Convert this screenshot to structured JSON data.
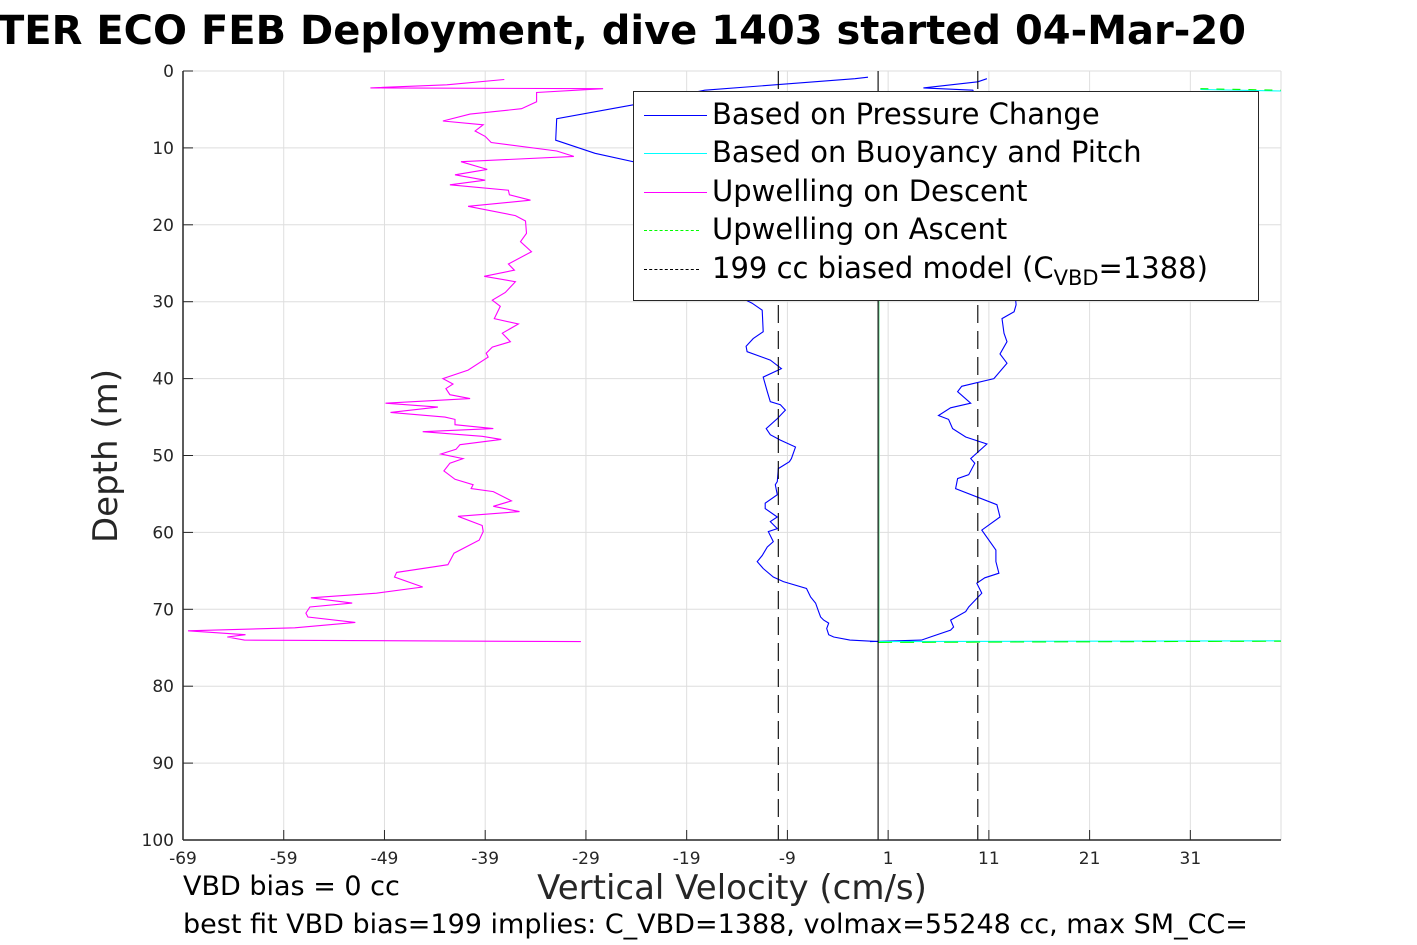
{
  "title": "TER ECO FEB Deployment, dive 1403 started 04-Mar-20",
  "notes": {
    "line1": "VBD bias = 0 cc",
    "line2": "best fit VBD bias=199 implies: C_VBD=1388, volmax=55248 cc, max SM_CC="
  },
  "chart_data": {
    "type": "line",
    "title": "TER ECO FEB Deployment, dive 1403 started 04-Mar-20",
    "xlabel": "Vertical Velocity (cm/s)",
    "ylabel": "Depth (m)",
    "xlim": [
      -69,
      40
    ],
    "ylim": [
      0,
      100
    ],
    "y_reversed": true,
    "grid": true,
    "xticks": [
      -69,
      -59,
      -49,
      -39,
      -29,
      -19,
      -9,
      1,
      11,
      21,
      31
    ],
    "yticks": [
      0,
      10,
      20,
      30,
      40,
      50,
      60,
      70,
      80,
      90,
      100
    ],
    "legend_placement": "top-right",
    "legend": [
      {
        "label": "Based on Pressure Change",
        "color": "#0000ff",
        "style": "solid"
      },
      {
        "label": "Based on Buoyancy and Pitch",
        "color": "#00ffff",
        "style": "solid"
      },
      {
        "label": "Upwelling on Descent",
        "color": "#ff00ff",
        "style": "solid"
      },
      {
        "label": "Upwelling on Ascent",
        "color": "#00ff00",
        "style": "dashed"
      },
      {
        "label_pre": "199 cc biased model (C",
        "label_sub": "VBD",
        "label_post": "=1388)",
        "color": "#000000",
        "style": "dashed"
      }
    ],
    "series": [
      {
        "name": "Based on Pressure Change (descent)",
        "color": "#0000ff",
        "dash": "",
        "points": [
          [
            -1,
            0.8
          ],
          [
            -2.3,
            1.0
          ],
          [
            -17.2,
            2.5
          ],
          [
            -24.3,
            4.4
          ],
          [
            -31.9,
            6.2
          ],
          [
            -32,
            9.0
          ],
          [
            -28.1,
            10.7
          ],
          [
            -24.3,
            11.8
          ],
          [
            -18,
            20
          ],
          [
            -13.7,
            29.4
          ],
          [
            -12.5,
            30.2
          ],
          [
            -11.5,
            31.1
          ],
          [
            -11.4,
            33.9
          ],
          [
            -12.4,
            34.8
          ],
          [
            -13.1,
            35.8
          ],
          [
            -13.0,
            36.5
          ],
          [
            -10.7,
            37.6
          ],
          [
            -9.6,
            38.7
          ],
          [
            -11.4,
            39.8
          ],
          [
            -11.0,
            41.7
          ],
          [
            -10.7,
            43.0
          ],
          [
            -9.7,
            43.4
          ],
          [
            -9.2,
            44.1
          ],
          [
            -10.0,
            45.2
          ],
          [
            -11.1,
            46.5
          ],
          [
            -10.7,
            47.3
          ],
          [
            -9.7,
            48.0
          ],
          [
            -8.2,
            48.9
          ],
          [
            -8.6,
            50.4
          ],
          [
            -8.8,
            50.8
          ],
          [
            -9.9,
            51.7
          ],
          [
            -10.0,
            53.4
          ],
          [
            -10.2,
            53.8
          ],
          [
            -10.0,
            55.1
          ],
          [
            -11.2,
            56.2
          ],
          [
            -11.2,
            56.9
          ],
          [
            -10.0,
            58.0
          ],
          [
            -10.7,
            58.6
          ],
          [
            -10.0,
            59.5
          ],
          [
            -10.9,
            59.9
          ],
          [
            -10.4,
            61.2
          ],
          [
            -11.0,
            61.9
          ],
          [
            -11.5,
            63.0
          ],
          [
            -12.0,
            63.8
          ],
          [
            -11.4,
            64.7
          ],
          [
            -10.4,
            65.8
          ],
          [
            -9.4,
            66.4
          ],
          [
            -7.1,
            67.3
          ],
          [
            -6.7,
            68.4
          ],
          [
            -6.2,
            69.2
          ],
          [
            -5.9,
            70.3
          ],
          [
            -5.7,
            71.0
          ],
          [
            -5.4,
            71.4
          ],
          [
            -4.9,
            71.8
          ],
          [
            -5.1,
            72.5
          ],
          [
            -4.9,
            73.3
          ],
          [
            -4.4,
            73.6
          ],
          [
            -2.8,
            74.0
          ],
          [
            0,
            74.2
          ]
        ]
      },
      {
        "name": "Based on Pressure Change (ascent)",
        "color": "#0000ff",
        "dash": "",
        "points": [
          [
            -0.8,
            74.2
          ],
          [
            4.3,
            74.0
          ],
          [
            5.2,
            73.6
          ],
          [
            7.2,
            72.7
          ],
          [
            7.5,
            72.3
          ],
          [
            7.2,
            71.4
          ],
          [
            8.7,
            70.3
          ],
          [
            9.0,
            69.7
          ],
          [
            10.3,
            67.9
          ],
          [
            9.8,
            66.6
          ],
          [
            10.6,
            65.9
          ],
          [
            12.0,
            65.3
          ],
          [
            11.7,
            63.8
          ],
          [
            11.7,
            62.3
          ],
          [
            10.3,
            59.7
          ],
          [
            12.1,
            58.0
          ],
          [
            11.8,
            56.4
          ],
          [
            7.7,
            54.3
          ],
          [
            7.9,
            53.0
          ],
          [
            9.0,
            52.5
          ],
          [
            9.6,
            51.0
          ],
          [
            9.2,
            50.4
          ],
          [
            10.8,
            48.5
          ],
          [
            8.7,
            47.6
          ],
          [
            7.4,
            46.5
          ],
          [
            7.0,
            45.3
          ],
          [
            6.0,
            44.8
          ],
          [
            7.2,
            43.8
          ],
          [
            9.2,
            43.2
          ],
          [
            7.9,
            41.7
          ],
          [
            8.3,
            41.0
          ],
          [
            11.5,
            40.0
          ],
          [
            12.8,
            38.0
          ],
          [
            12.1,
            36.8
          ],
          [
            12.8,
            35.2
          ],
          [
            12.5,
            34.1
          ],
          [
            12.3,
            32.2
          ],
          [
            13.5,
            31.3
          ],
          [
            13.7,
            30.4
          ],
          [
            13,
            20
          ],
          [
            12,
            10
          ],
          [
            9.4,
            2.5
          ],
          [
            4.5,
            2.2
          ],
          [
            9.9,
            1.4
          ],
          [
            10.8,
            1.0
          ]
        ]
      },
      {
        "name": "Based on Buoyancy and Pitch",
        "color": "#00ffff",
        "dash": "",
        "points": [
          [
            32,
            2.4
          ],
          [
            40,
            2.6
          ]
        ]
      },
      {
        "name": "Based on Buoyancy and Pitch (bottom)",
        "color": "#00ffff",
        "dash": "",
        "points": [
          [
            0,
            74.2
          ],
          [
            40,
            74.1
          ]
        ]
      },
      {
        "name": "Upwelling on Descent",
        "color": "#ff00ff",
        "dash": "",
        "points": [
          [
            -37.1,
            1.1
          ],
          [
            -42.8,
            1.8
          ],
          [
            -50.4,
            2.2
          ],
          [
            -27.3,
            2.3
          ],
          [
            -33.9,
            2.8
          ],
          [
            -33.9,
            4.0
          ],
          [
            -35.4,
            4.9
          ],
          [
            -40.5,
            5.6
          ],
          [
            -43.2,
            6.5
          ],
          [
            -39.2,
            7.0
          ],
          [
            -40.0,
            7.8
          ],
          [
            -39.0,
            8.5
          ],
          [
            -38.4,
            9.3
          ],
          [
            -31.9,
            10.4
          ],
          [
            -30.2,
            11.1
          ],
          [
            -41.4,
            11.8
          ],
          [
            -38.8,
            12.8
          ],
          [
            -42.0,
            13.5
          ],
          [
            -39.0,
            14.2
          ],
          [
            -42.5,
            14.8
          ],
          [
            -36.7,
            15.5
          ],
          [
            -36.6,
            16.1
          ],
          [
            -34.5,
            16.8
          ],
          [
            -40.7,
            17.6
          ],
          [
            -36.0,
            18.8
          ],
          [
            -35.0,
            19.5
          ],
          [
            -34.9,
            21.1
          ],
          [
            -35.5,
            22.2
          ],
          [
            -34.4,
            23.5
          ],
          [
            -36.7,
            25.1
          ],
          [
            -36.1,
            25.9
          ],
          [
            -39.1,
            26.7
          ],
          [
            -36.0,
            27.4
          ],
          [
            -37.0,
            28.8
          ],
          [
            -38.3,
            29.8
          ],
          [
            -37.5,
            30.6
          ],
          [
            -38.1,
            32.2
          ],
          [
            -35.7,
            32.9
          ],
          [
            -37.3,
            34.1
          ],
          [
            -36.5,
            35.2
          ],
          [
            -38.3,
            35.9
          ],
          [
            -38.9,
            36.7
          ],
          [
            -38.7,
            37.2
          ],
          [
            -40.7,
            38.9
          ],
          [
            -43.2,
            40.0
          ],
          [
            -42.2,
            40.7
          ],
          [
            -42.9,
            41.3
          ],
          [
            -42.5,
            42.1
          ],
          [
            -40.5,
            42.6
          ],
          [
            -48.9,
            43.2
          ],
          [
            -43.7,
            43.7
          ],
          [
            -48.4,
            44.4
          ],
          [
            -43.0,
            45.0
          ],
          [
            -42.0,
            45.3
          ],
          [
            -42.0,
            46.0
          ],
          [
            -38.2,
            46.5
          ],
          [
            -45.2,
            46.9
          ],
          [
            -39.3,
            47.5
          ],
          [
            -37.4,
            47.9
          ],
          [
            -41.5,
            48.6
          ],
          [
            -41.9,
            49.2
          ],
          [
            -43.4,
            49.8
          ],
          [
            -41.2,
            50.4
          ],
          [
            -42.5,
            51.0
          ],
          [
            -43.1,
            52.0
          ],
          [
            -42.0,
            53.1
          ],
          [
            -40.2,
            53.8
          ],
          [
            -40.4,
            54.3
          ],
          [
            -38.2,
            54.7
          ],
          [
            -36.4,
            55.9
          ],
          [
            -38.2,
            56.6
          ],
          [
            -35.6,
            57.3
          ],
          [
            -41.7,
            57.9
          ],
          [
            -39.3,
            59.1
          ],
          [
            -39.2,
            59.9
          ],
          [
            -39.6,
            61.0
          ],
          [
            -42.1,
            62.7
          ],
          [
            -42.7,
            64.2
          ],
          [
            -47.8,
            65.2
          ],
          [
            -48.0,
            65.8
          ],
          [
            -45.2,
            67.1
          ],
          [
            -49.8,
            67.9
          ],
          [
            -56.3,
            68.5
          ],
          [
            -52.2,
            69.2
          ],
          [
            -56.4,
            69.7
          ],
          [
            -56.8,
            70.5
          ],
          [
            -56.6,
            71.0
          ],
          [
            -51.9,
            71.7
          ],
          [
            -57.9,
            72.4
          ],
          [
            -68.5,
            72.8
          ],
          [
            -62.8,
            73.3
          ],
          [
            -64.6,
            73.6
          ],
          [
            -62.9,
            74.0
          ],
          [
            -29.5,
            74.2
          ]
        ]
      },
      {
        "name": "Upwelling on Ascent",
        "color": "#00ff00",
        "dash": "8,8",
        "points": [
          [
            32,
            2.3
          ],
          [
            40,
            2.5
          ]
        ]
      },
      {
        "name": "Upwelling on Ascent (bottom)",
        "color": "#00ff00",
        "dash": "14,8",
        "points": [
          [
            0,
            74.3
          ],
          [
            40,
            74.15
          ]
        ]
      },
      {
        "name": "Upwelling on Ascent (vertical)",
        "color": "#7fe0a0",
        "dash": "",
        "points": [
          [
            0.1,
            3
          ],
          [
            0.1,
            74.2
          ]
        ]
      },
      {
        "name": "Zero line",
        "color": "#000000",
        "dash": "",
        "points": [
          [
            0,
            0
          ],
          [
            0,
            100
          ]
        ]
      },
      {
        "name": "199 cc biased model (descent)",
        "color": "#000000",
        "dash": "18,8",
        "points": [
          [
            -9.9,
            0
          ],
          [
            -9.9,
            100
          ]
        ]
      },
      {
        "name": "199 cc biased model (ascent)",
        "color": "#000000",
        "dash": "18,8",
        "points": [
          [
            9.9,
            0
          ],
          [
            9.9,
            100
          ]
        ]
      }
    ]
  }
}
